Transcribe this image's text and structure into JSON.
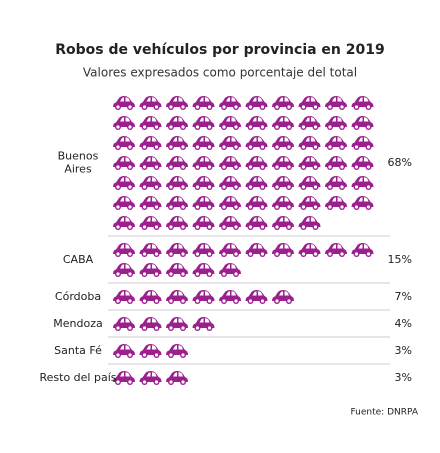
{
  "chart_data": {
    "type": "pictogram",
    "title": "Robos de vehículos por provincia en 2019",
    "subtitle": "Valores expresados como porcentaje del total",
    "categories": [
      "Buenos Aires",
      "CABA",
      "Córdoba",
      "Mendoza",
      "Santa Fé",
      "Resto del país"
    ],
    "values": [
      68,
      15,
      7,
      4,
      3,
      3
    ],
    "value_labels": [
      "68%",
      "15%",
      "7%",
      "4%",
      "3%",
      "3%"
    ],
    "color": "#9c1f8e",
    "source": "Fuente: DNRPA"
  }
}
